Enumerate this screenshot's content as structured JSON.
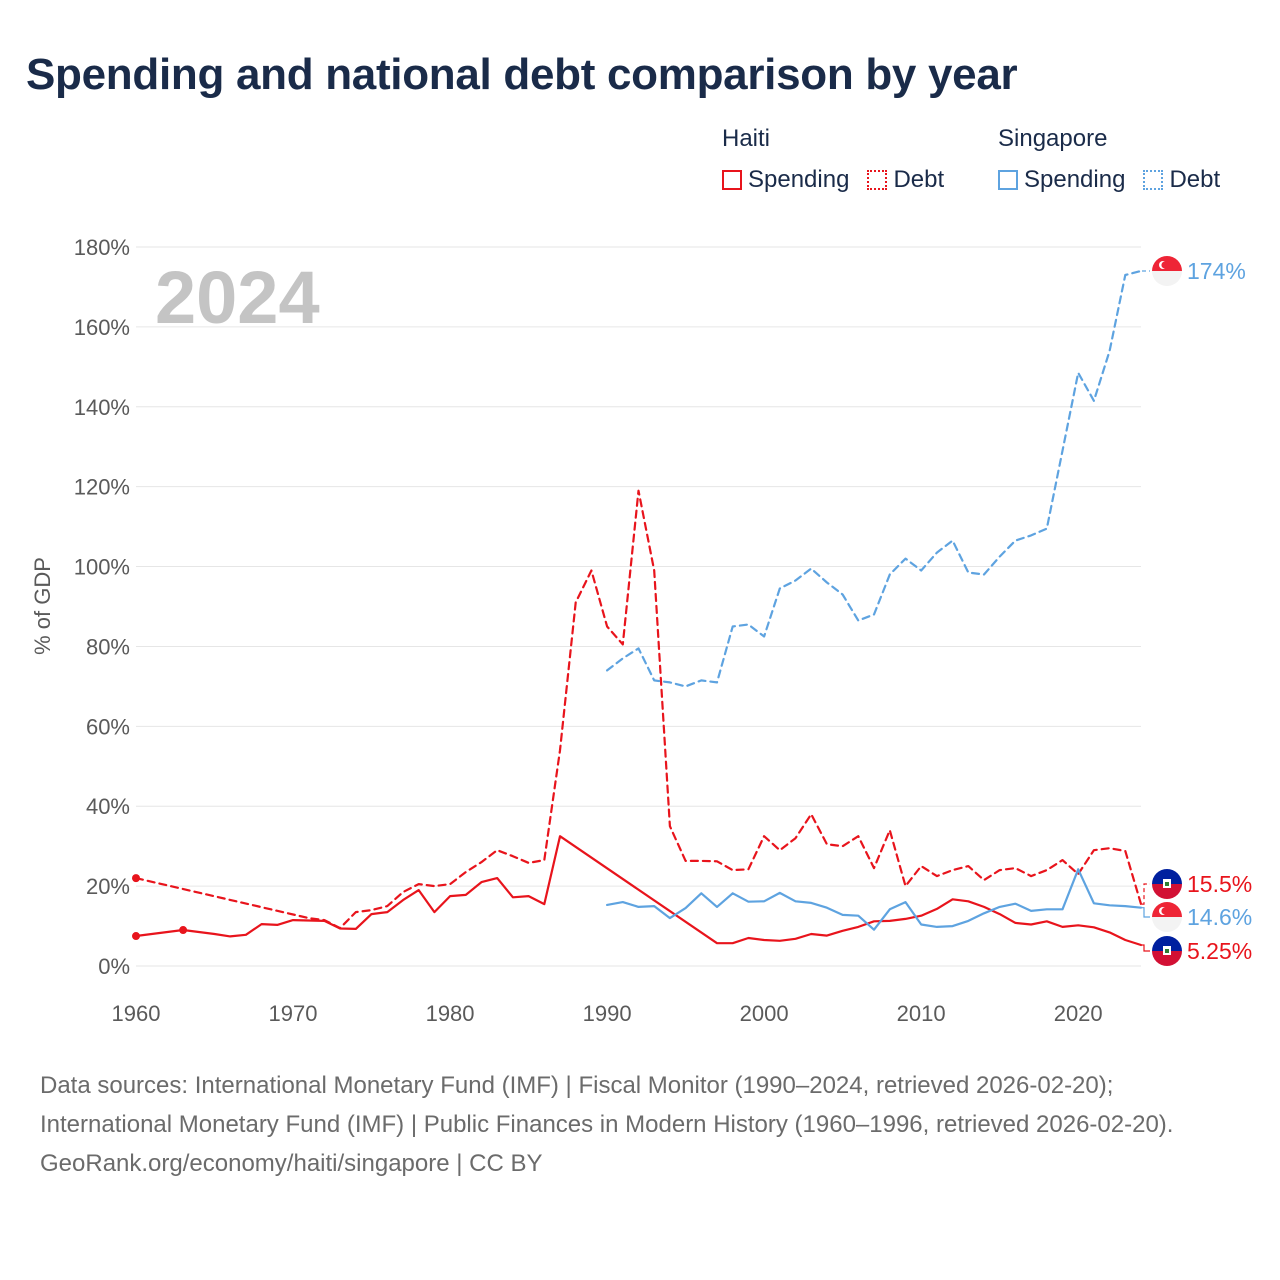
{
  "title": "Spending and national debt comparison by year",
  "legend": [
    {
      "country": "Haiti",
      "color": "#e8141c",
      "items": [
        {
          "label": "Spending",
          "style": "solid"
        },
        {
          "label": "Debt",
          "style": "dotted"
        }
      ]
    },
    {
      "country": "Singapore",
      "color": "#5ea3e0",
      "items": [
        {
          "label": "Spending",
          "style": "solid"
        },
        {
          "label": "Debt",
          "style": "dotted"
        }
      ]
    }
  ],
  "chart_data": {
    "type": "line",
    "year_watermark": "2024",
    "ylabel": "% of GDP",
    "ylim": [
      0,
      180
    ],
    "xlim": [
      1960,
      2024
    ],
    "y_ticks": [
      "0%",
      "20%",
      "40%",
      "60%",
      "80%",
      "100%",
      "120%",
      "140%",
      "160%",
      "180%"
    ],
    "y_tick_values": [
      0,
      20,
      40,
      60,
      80,
      100,
      120,
      140,
      160,
      180
    ],
    "x_ticks": [
      "1960",
      "1970",
      "1980",
      "1990",
      "2000",
      "2010",
      "2020"
    ],
    "x_tick_values": [
      1960,
      1970,
      1980,
      1990,
      2000,
      2010,
      2020
    ],
    "series": [
      {
        "name": "Haiti Spending",
        "country": "Haiti",
        "color": "#e8141c",
        "dash": false,
        "marker_years": [
          1960,
          1963
        ],
        "points": [
          [
            1960,
            7.5
          ],
          [
            1963,
            9
          ],
          [
            1964,
            8.5
          ],
          [
            1965,
            8
          ],
          [
            1966,
            7.4
          ],
          [
            1967,
            7.8
          ],
          [
            1968,
            10.5
          ],
          [
            1969,
            10.3
          ],
          [
            1970,
            11.5
          ],
          [
            1971,
            11.4
          ],
          [
            1972,
            11.3
          ],
          [
            1973,
            9.4
          ],
          [
            1974,
            9.3
          ],
          [
            1975,
            13
          ],
          [
            1976,
            13.5
          ],
          [
            1977,
            16.5
          ],
          [
            1978,
            19
          ],
          [
            1979,
            13.5
          ],
          [
            1980,
            17.5
          ],
          [
            1981,
            17.8
          ],
          [
            1982,
            21
          ],
          [
            1983,
            22
          ],
          [
            1984,
            17.2
          ],
          [
            1985,
            17.5
          ],
          [
            1986,
            15.5
          ],
          [
            1987,
            32.5
          ],
          [
            1997,
            5.7
          ],
          [
            1998,
            5.7
          ],
          [
            1999,
            7
          ],
          [
            2000,
            6.5
          ],
          [
            2001,
            6.3
          ],
          [
            2002,
            6.8
          ],
          [
            2003,
            8
          ],
          [
            2004,
            7.6
          ],
          [
            2005,
            8.8
          ],
          [
            2006,
            9.8
          ],
          [
            2007,
            11.2
          ],
          [
            2008,
            11.3
          ],
          [
            2009,
            11.8
          ],
          [
            2010,
            12.6
          ],
          [
            2011,
            14.3
          ],
          [
            2012,
            16.7
          ],
          [
            2013,
            16.2
          ],
          [
            2014,
            14.8
          ],
          [
            2015,
            13
          ],
          [
            2016,
            10.8
          ],
          [
            2017,
            10.4
          ],
          [
            2018,
            11.2
          ],
          [
            2019,
            9.8
          ],
          [
            2020,
            10.2
          ],
          [
            2021,
            9.7
          ],
          [
            2022,
            8.4
          ],
          [
            2023,
            6.5
          ],
          [
            2024,
            5.25
          ]
        ],
        "end_label": "5.25%",
        "end_value": 5.25
      },
      {
        "name": "Haiti Debt",
        "country": "Haiti",
        "color": "#e8141c",
        "dash": true,
        "marker_years": [
          1960
        ],
        "points": [
          [
            1960,
            22
          ],
          [
            1971,
            12
          ],
          [
            1972,
            11.5
          ],
          [
            1973,
            9.5
          ],
          [
            1974,
            13.5
          ],
          [
            1975,
            14
          ],
          [
            1976,
            15
          ],
          [
            1977,
            18.5
          ],
          [
            1978,
            20.5
          ],
          [
            1979,
            20
          ],
          [
            1980,
            20.5
          ],
          [
            1981,
            23.5
          ],
          [
            1982,
            26
          ],
          [
            1983,
            29
          ],
          [
            1984,
            27.5
          ],
          [
            1985,
            25.8
          ],
          [
            1986,
            26.5
          ],
          [
            1987,
            54
          ],
          [
            1988,
            91
          ],
          [
            1989,
            99
          ],
          [
            1990,
            85
          ],
          [
            1991,
            80.5
          ],
          [
            1992,
            119
          ],
          [
            1993,
            99
          ],
          [
            1994,
            35
          ],
          [
            1995,
            26.3
          ],
          [
            1996,
            26.3
          ],
          [
            1997,
            26.2
          ],
          [
            1998,
            24
          ],
          [
            1999,
            24.2
          ],
          [
            2000,
            32.5
          ],
          [
            2001,
            29
          ],
          [
            2002,
            32
          ],
          [
            2003,
            38
          ],
          [
            2004,
            30.5
          ],
          [
            2005,
            30
          ],
          [
            2006,
            32.5
          ],
          [
            2007,
            24.5
          ],
          [
            2008,
            34
          ],
          [
            2009,
            20
          ],
          [
            2010,
            25
          ],
          [
            2011,
            22.5
          ],
          [
            2012,
            24
          ],
          [
            2013,
            25
          ],
          [
            2014,
            21.5
          ],
          [
            2015,
            24
          ],
          [
            2016,
            24.5
          ],
          [
            2017,
            22.5
          ],
          [
            2018,
            24
          ],
          [
            2019,
            26.5
          ],
          [
            2020,
            23
          ],
          [
            2021,
            29
          ],
          [
            2022,
            29.5
          ],
          [
            2023,
            28.8
          ],
          [
            2024,
            15.5
          ]
        ],
        "end_label": "15.5%",
        "end_value": 15.5
      },
      {
        "name": "Singapore Spending",
        "country": "Singapore",
        "color": "#5ea3e0",
        "dash": false,
        "marker_years": [],
        "points": [
          [
            1990,
            15.3
          ],
          [
            1991,
            16
          ],
          [
            1992,
            14.8
          ],
          [
            1993,
            15
          ],
          [
            1994,
            12
          ],
          [
            1995,
            14.5
          ],
          [
            1996,
            18.2
          ],
          [
            1997,
            14.8
          ],
          [
            1998,
            18.2
          ],
          [
            1999,
            16.1
          ],
          [
            2000,
            16.2
          ],
          [
            2001,
            18.3
          ],
          [
            2002,
            16.2
          ],
          [
            2003,
            15.8
          ],
          [
            2004,
            14.6
          ],
          [
            2005,
            12.8
          ],
          [
            2006,
            12.6
          ],
          [
            2007,
            9.1
          ],
          [
            2008,
            14.2
          ],
          [
            2009,
            16
          ],
          [
            2010,
            10.4
          ],
          [
            2011,
            9.8
          ],
          [
            2012,
            10
          ],
          [
            2013,
            11.3
          ],
          [
            2014,
            13.2
          ],
          [
            2015,
            14.8
          ],
          [
            2016,
            15.6
          ],
          [
            2017,
            13.8
          ],
          [
            2018,
            14.2
          ],
          [
            2019,
            14.2
          ],
          [
            2020,
            24.2
          ],
          [
            2021,
            15.7
          ],
          [
            2022,
            15.2
          ],
          [
            2023,
            15
          ],
          [
            2024,
            14.6
          ]
        ],
        "end_label": "14.6%",
        "end_value": 14.6
      },
      {
        "name": "Singapore Debt",
        "country": "Singapore",
        "color": "#5ea3e0",
        "dash": true,
        "marker_years": [],
        "points": [
          [
            1990,
            74
          ],
          [
            1991,
            77
          ],
          [
            1992,
            79.5
          ],
          [
            1993,
            71.5
          ],
          [
            1994,
            71
          ],
          [
            1995,
            70
          ],
          [
            1996,
            71.5
          ],
          [
            1997,
            71
          ],
          [
            1998,
            85
          ],
          [
            1999,
            85.5
          ],
          [
            2000,
            82.5
          ],
          [
            2001,
            94.5
          ],
          [
            2002,
            96.5
          ],
          [
            2003,
            99.5
          ],
          [
            2004,
            96
          ],
          [
            2005,
            93
          ],
          [
            2006,
            86.5
          ],
          [
            2007,
            88
          ],
          [
            2008,
            98
          ],
          [
            2009,
            102
          ],
          [
            2010,
            99
          ],
          [
            2011,
            103.5
          ],
          [
            2012,
            106.5
          ],
          [
            2013,
            98.5
          ],
          [
            2014,
            98
          ],
          [
            2015,
            102.5
          ],
          [
            2016,
            106.5
          ],
          [
            2017,
            107.8
          ],
          [
            2018,
            109.5
          ],
          [
            2019,
            129
          ],
          [
            2020,
            148.5
          ],
          [
            2021,
            141.5
          ],
          [
            2022,
            154
          ],
          [
            2023,
            173
          ],
          [
            2024,
            174
          ]
        ],
        "end_label": "174%",
        "end_value": 174
      }
    ]
  },
  "footer": {
    "sources": "Data sources: International Monetary Fund (IMF) | Fiscal Monitor (1990–2024, retrieved 2026-02-20); International Monetary Fund (IMF) | Public Finances in Modern History (1960–1996, retrieved 2026-02-20).",
    "attribution": "GeoRank.org/economy/haiti/singapore | CC BY"
  }
}
